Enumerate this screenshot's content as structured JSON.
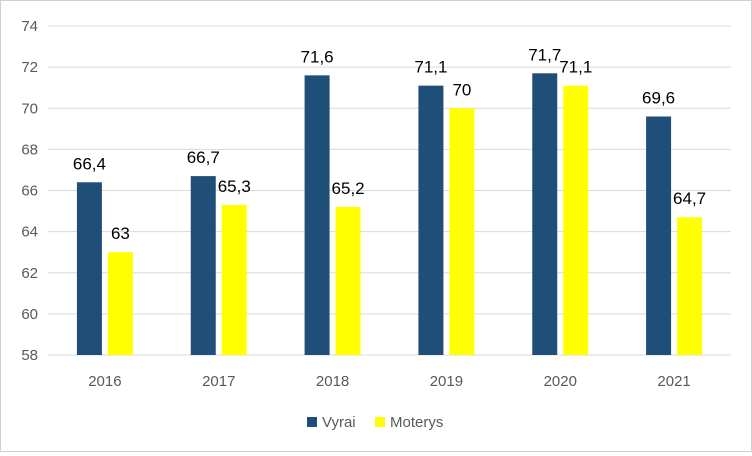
{
  "chart_data": {
    "type": "bar",
    "categories": [
      "2016",
      "2017",
      "2018",
      "2019",
      "2020",
      "2021"
    ],
    "series": [
      {
        "name": "Vyrai",
        "color": "#1f4e79",
        "values": [
          66.4,
          66.7,
          71.6,
          71.1,
          71.7,
          69.6
        ],
        "labels": [
          "66,4",
          "66,7",
          "71,6",
          "71,1",
          "71,7",
          "69,6"
        ]
      },
      {
        "name": "Moterys",
        "color": "#ffff00",
        "values": [
          63,
          65.3,
          65.2,
          70,
          71.1,
          64.7
        ],
        "labels": [
          "63",
          "65,3",
          "65,2",
          "70",
          "71,1",
          "64,7"
        ]
      }
    ],
    "ylim": [
      58,
      74
    ],
    "yticks": [
      58,
      60,
      62,
      64,
      66,
      68,
      70,
      72,
      74
    ],
    "grid": true,
    "legend_position": "bottom"
  }
}
